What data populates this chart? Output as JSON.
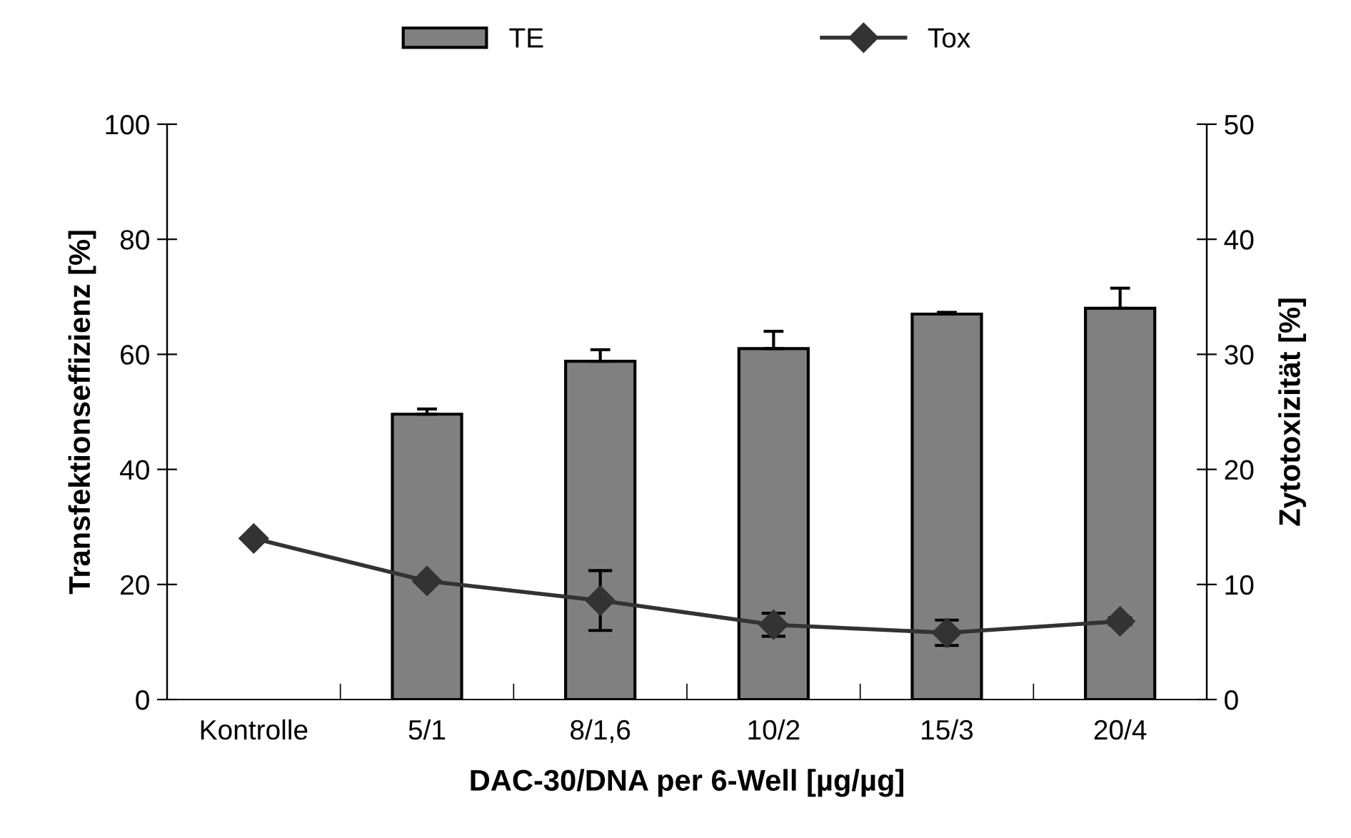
{
  "chart_data": {
    "type": "bar",
    "xlabel": "DAC-30/DNA per 6-Well [µg/µg]",
    "ylabel": "Transfektionseffizienz [%]",
    "y2label": "Zytotoxizität [%]",
    "categories": [
      "Kontrolle",
      "5/1",
      "8/1,6",
      "10/2",
      "15/3",
      "20/4"
    ],
    "series": [
      {
        "name": "TE",
        "color": "#808080",
        "values": [
          null,
          49.6,
          58.8,
          61.0,
          67.0,
          68.0
        ],
        "errors": [
          null,
          [
            49.6,
            50.5
          ],
          [
            58.8,
            60.8
          ],
          [
            61.0,
            64.0
          ],
          [
            67.0,
            67.3
          ],
          [
            68.0,
            71.5
          ]
        ]
      },
      {
        "name": "Tox",
        "type": "line",
        "axis": "y2",
        "color": "#333333",
        "marker": "diamond",
        "values": [
          14.0,
          10.3,
          8.6,
          6.5,
          5.8,
          6.8
        ],
        "errors": [
          null,
          null,
          2.6,
          1.0,
          1.1,
          0.3
        ]
      }
    ],
    "ylim": [
      0,
      100
    ],
    "yticks": [
      0,
      20,
      40,
      60,
      80,
      100
    ],
    "y2lim": [
      0,
      50
    ],
    "y2ticks": [
      0,
      10,
      20,
      30,
      40,
      50
    ],
    "grid": false,
    "legend": "top"
  }
}
